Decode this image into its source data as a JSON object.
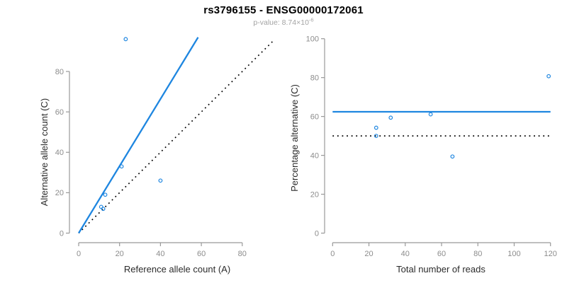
{
  "header": {
    "title": "rs3796155 - ENSG00000172061",
    "pvalue_label": "p-value: ",
    "pvalue_base": "8.74×10",
    "pvalue_exponent": "-6"
  },
  "colors": {
    "accent_blue": "#1e86e0",
    "line_black": "#000000",
    "axis_gray": "#999999",
    "tick_label_gray": "#8c8c8c",
    "axis_label_dark": "#2b2b2b",
    "subtitle_gray": "#a3a3a3"
  },
  "chart_data": [
    {
      "type": "scatter",
      "panel": "left",
      "xlabel": "Reference allele count (A)",
      "ylabel": "Alternative allele count (C)",
      "xlim": [
        0,
        97
      ],
      "ylim": [
        0,
        97
      ],
      "xticks": [
        0,
        20,
        40,
        60,
        80
      ],
      "yticks": [
        0,
        20,
        40,
        60,
        80
      ],
      "grid": false,
      "legend": "none",
      "points": [
        {
          "x": 23,
          "y": 96
        },
        {
          "x": 21,
          "y": 33
        },
        {
          "x": 40,
          "y": 26
        },
        {
          "x": 13,
          "y": 19
        },
        {
          "x": 11,
          "y": 13
        },
        {
          "x": 12,
          "y": 12
        }
      ],
      "lines": [
        {
          "name": "identity-line",
          "style": "dotted",
          "color_key": "line_black",
          "x": [
            0,
            95.5
          ],
          "y": [
            0,
            95.5
          ]
        },
        {
          "name": "fitted-allelic-ratio-line",
          "style": "solid",
          "color_key": "accent_blue",
          "x": [
            0,
            58.4
          ],
          "y": [
            0,
            96.9
          ]
        }
      ]
    },
    {
      "type": "scatter",
      "panel": "right",
      "xlabel": "Total number of reads",
      "ylabel": "Percentage alternative (C)",
      "xlim": [
        0,
        122
      ],
      "ylim": [
        0,
        100
      ],
      "xticks": [
        0,
        20,
        40,
        60,
        80,
        100,
        120
      ],
      "yticks": [
        0,
        20,
        40,
        60,
        80,
        100
      ],
      "grid": false,
      "legend": "none",
      "points": [
        {
          "x": 119,
          "y": 80.7
        },
        {
          "x": 54,
          "y": 61.1
        },
        {
          "x": 66,
          "y": 39.4
        },
        {
          "x": 32,
          "y": 59.4
        },
        {
          "x": 24,
          "y": 54.2
        },
        {
          "x": 24,
          "y": 50
        }
      ],
      "lines": [
        {
          "name": "fifty-percent-line",
          "style": "dotted",
          "color_key": "line_black",
          "x": [
            0,
            120
          ],
          "y": [
            50,
            50
          ]
        },
        {
          "name": "mean-percentage-line",
          "style": "solid",
          "color_key": "accent_blue",
          "x": [
            0,
            120
          ],
          "y": [
            62.4,
            62.4
          ]
        }
      ]
    }
  ]
}
